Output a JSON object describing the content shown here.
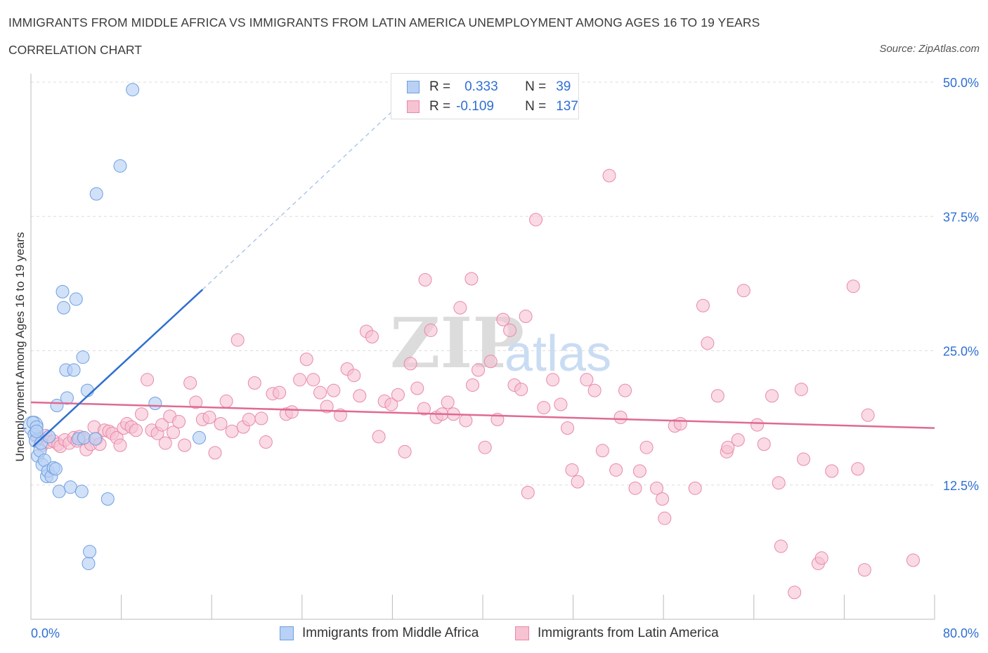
{
  "header": {
    "title": "IMMIGRANTS FROM MIDDLE AFRICA VS IMMIGRANTS FROM LATIN AMERICA UNEMPLOYMENT AMONG AGES 16 TO 19 YEARS",
    "subtitle": "CORRELATION CHART",
    "source": "Source: ZipAtlas.com"
  },
  "legend": {
    "rows": [
      {
        "r_label": "R =",
        "r_value": "0.333",
        "n_label": "N =",
        "n_value": "39"
      },
      {
        "r_label": "R =",
        "r_value": "-0.109",
        "n_label": "N =",
        "n_value": "137"
      }
    ],
    "bottom": [
      {
        "label": "Immigrants from Middle Africa"
      },
      {
        "label": "Immigrants from Latin America"
      }
    ]
  },
  "watermark": {
    "part1": "ZIP",
    "part2": "atlas"
  },
  "colors": {
    "blue_fill": "#b8d1f5",
    "blue_stroke": "#6f9fe0",
    "blue_line": "#2f6fcf",
    "pink_fill": "#f7c2d2",
    "pink_stroke": "#e889a8",
    "pink_line": "#e06a92",
    "axis_label": "#2e6fd4",
    "grid": "#dddddd"
  },
  "chart_data": {
    "type": "scatter",
    "title": "IMMIGRANTS FROM MIDDLE AFRICA VS IMMIGRANTS FROM LATIN AMERICA UNEMPLOYMENT AMONG AGES 16 TO 19 YEARS",
    "xlabel": "",
    "ylabel": "Unemployment Among Ages 16 to 19 years",
    "xlim": [
      0,
      80
    ],
    "ylim": [
      0,
      50
    ],
    "x_tick_labels": [
      "0.0%",
      "80.0%"
    ],
    "y_ticks": [
      12.5,
      25.0,
      37.5,
      50.0
    ],
    "y_tick_labels": [
      "12.5%",
      "25.0%",
      "37.5%",
      "50.0%"
    ],
    "grid": "horizontal dashed",
    "legend_position": "top-center",
    "series": [
      {
        "name": "Immigrants from Middle Africa",
        "r": 0.333,
        "n": 39,
        "trend": {
          "x0": 0.2,
          "y0": 16.1,
          "x1": 15.2,
          "y1": 30.7,
          "dashed_to_x": 32,
          "dashed_to_y": 47.3
        },
        "points": [
          [
            0.2,
            18.3
          ],
          [
            0.3,
            17.2
          ],
          [
            0.4,
            16.6
          ],
          [
            0.5,
            17.9
          ],
          [
            0.6,
            15.2
          ],
          [
            0.8,
            15.7
          ],
          [
            0.9,
            16.4
          ],
          [
            1.0,
            14.4
          ],
          [
            1.2,
            14.8
          ],
          [
            1.4,
            13.3
          ],
          [
            1.5,
            13.8
          ],
          [
            1.6,
            17.0
          ],
          [
            1.8,
            13.3
          ],
          [
            2.0,
            14.1
          ],
          [
            2.3,
            19.9
          ],
          [
            2.5,
            11.9
          ],
          [
            2.8,
            30.5
          ],
          [
            2.9,
            29.0
          ],
          [
            3.1,
            23.2
          ],
          [
            3.2,
            20.6
          ],
          [
            3.5,
            12.3
          ],
          [
            3.8,
            23.2
          ],
          [
            4.0,
            29.8
          ],
          [
            4.2,
            16.8
          ],
          [
            4.5,
            11.9
          ],
          [
            4.6,
            24.4
          ],
          [
            4.7,
            16.9
          ],
          [
            5.0,
            21.3
          ],
          [
            5.1,
            5.2
          ],
          [
            5.2,
            6.3
          ],
          [
            5.7,
            16.8
          ],
          [
            5.8,
            39.6
          ],
          [
            6.8,
            11.2
          ],
          [
            7.9,
            42.2
          ],
          [
            9.0,
            49.3
          ],
          [
            11.0,
            20.1
          ],
          [
            14.9,
            16.9
          ],
          [
            0.5,
            17.5
          ],
          [
            2.2,
            14.0
          ]
        ]
      },
      {
        "name": "Immigrants from Latin America",
        "r": -0.109,
        "n": 137,
        "trend": {
          "x0": 0,
          "y0": 20.2,
          "x1": 80,
          "y1": 17.8
        },
        "points": [
          [
            0.6,
            16.9
          ],
          [
            1.0,
            16.2
          ],
          [
            1.3,
            17.1
          ],
          [
            1.6,
            16.5
          ],
          [
            2.0,
            16.6
          ],
          [
            2.4,
            16.3
          ],
          [
            2.6,
            16.1
          ],
          [
            3.0,
            16.7
          ],
          [
            3.4,
            16.4
          ],
          [
            3.8,
            16.9
          ],
          [
            4.1,
            16.6
          ],
          [
            4.3,
            17.0
          ],
          [
            4.6,
            16.8
          ],
          [
            4.9,
            15.8
          ],
          [
            5.3,
            16.3
          ],
          [
            5.6,
            17.9
          ],
          [
            5.8,
            16.8
          ],
          [
            6.1,
            16.3
          ],
          [
            6.5,
            17.6
          ],
          [
            6.9,
            17.5
          ],
          [
            7.2,
            17.3
          ],
          [
            7.6,
            16.9
          ],
          [
            7.9,
            16.2
          ],
          [
            8.2,
            17.8
          ],
          [
            8.5,
            18.2
          ],
          [
            8.9,
            17.9
          ],
          [
            9.3,
            17.6
          ],
          [
            9.8,
            19.1
          ],
          [
            10.3,
            22.3
          ],
          [
            10.7,
            17.6
          ],
          [
            11.2,
            17.3
          ],
          [
            11.6,
            18.1
          ],
          [
            11.9,
            16.4
          ],
          [
            12.3,
            18.9
          ],
          [
            12.6,
            17.4
          ],
          [
            13.1,
            18.4
          ],
          [
            13.6,
            16.2
          ],
          [
            14.1,
            22.0
          ],
          [
            14.6,
            20.2
          ],
          [
            15.2,
            18.6
          ],
          [
            15.8,
            18.8
          ],
          [
            16.3,
            15.5
          ],
          [
            16.8,
            18.2
          ],
          [
            17.3,
            20.3
          ],
          [
            17.8,
            17.5
          ],
          [
            18.3,
            26.0
          ],
          [
            18.8,
            17.9
          ],
          [
            19.3,
            18.6
          ],
          [
            19.8,
            22.0
          ],
          [
            20.4,
            18.7
          ],
          [
            20.8,
            16.5
          ],
          [
            21.4,
            21.0
          ],
          [
            22.0,
            21.1
          ],
          [
            22.6,
            19.1
          ],
          [
            23.1,
            19.3
          ],
          [
            23.8,
            22.3
          ],
          [
            24.4,
            24.2
          ],
          [
            25.0,
            22.3
          ],
          [
            25.6,
            21.1
          ],
          [
            26.2,
            19.8
          ],
          [
            26.8,
            21.3
          ],
          [
            27.4,
            19.0
          ],
          [
            28.0,
            23.3
          ],
          [
            28.6,
            22.7
          ],
          [
            29.1,
            20.8
          ],
          [
            29.7,
            26.8
          ],
          [
            30.2,
            26.3
          ],
          [
            30.8,
            17.0
          ],
          [
            31.3,
            20.3
          ],
          [
            31.9,
            20.0
          ],
          [
            32.5,
            20.9
          ],
          [
            33.1,
            15.6
          ],
          [
            33.6,
            23.8
          ],
          [
            34.2,
            21.5
          ],
          [
            34.8,
            19.6
          ],
          [
            35.4,
            26.9
          ],
          [
            35.9,
            18.8
          ],
          [
            36.4,
            19.1
          ],
          [
            36.9,
            20.2
          ],
          [
            37.4,
            19.1
          ],
          [
            38.0,
            29.0
          ],
          [
            38.5,
            18.5
          ],
          [
            39.1,
            21.8
          ],
          [
            39.6,
            23.2
          ],
          [
            40.2,
            16.0
          ],
          [
            40.7,
            24.0
          ],
          [
            41.3,
            18.6
          ],
          [
            41.8,
            27.9
          ],
          [
            42.4,
            26.9
          ],
          [
            42.8,
            21.8
          ],
          [
            43.4,
            21.4
          ],
          [
            43.8,
            28.2
          ],
          [
            44.0,
            11.8
          ],
          [
            44.7,
            37.2
          ],
          [
            45.4,
            19.7
          ],
          [
            46.2,
            22.3
          ],
          [
            46.9,
            20.0
          ],
          [
            47.5,
            17.8
          ],
          [
            47.9,
            13.9
          ],
          [
            48.4,
            12.8
          ],
          [
            49.2,
            22.3
          ],
          [
            49.9,
            21.3
          ],
          [
            50.6,
            15.7
          ],
          [
            51.2,
            41.3
          ],
          [
            51.8,
            13.9
          ],
          [
            52.2,
            18.8
          ],
          [
            52.6,
            21.3
          ],
          [
            53.5,
            12.2
          ],
          [
            53.9,
            13.8
          ],
          [
            54.5,
            16.0
          ],
          [
            55.4,
            12.2
          ],
          [
            55.9,
            11.2
          ],
          [
            56.1,
            9.4
          ],
          [
            57.0,
            18.0
          ],
          [
            57.5,
            18.2
          ],
          [
            58.8,
            12.2
          ],
          [
            59.5,
            29.2
          ],
          [
            59.9,
            25.7
          ],
          [
            60.8,
            20.8
          ],
          [
            61.6,
            15.6
          ],
          [
            61.7,
            16.0
          ],
          [
            62.6,
            16.7
          ],
          [
            63.1,
            30.6
          ],
          [
            64.3,
            18.1
          ],
          [
            64.9,
            16.3
          ],
          [
            65.6,
            20.8
          ],
          [
            66.2,
            12.7
          ],
          [
            66.4,
            6.8
          ],
          [
            67.6,
            2.5
          ],
          [
            68.2,
            21.4
          ],
          [
            68.4,
            14.9
          ],
          [
            69.7,
            5.2
          ],
          [
            70.0,
            5.7
          ],
          [
            70.9,
            13.8
          ],
          [
            72.8,
            31.0
          ],
          [
            73.2,
            14.0
          ],
          [
            73.8,
            4.6
          ],
          [
            74.1,
            19.0
          ],
          [
            78.1,
            5.5
          ],
          [
            39.0,
            31.7
          ],
          [
            34.9,
            31.6
          ]
        ]
      }
    ]
  }
}
